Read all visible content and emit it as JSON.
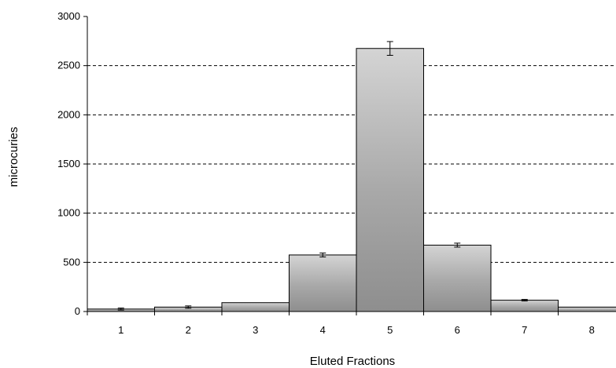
{
  "chart_data": {
    "type": "bar",
    "title": "",
    "xlabel": "Eluted Fractions",
    "ylabel": "microcuries",
    "categories": [
      "1",
      "2",
      "3",
      "4",
      "5",
      "6",
      "7",
      "8"
    ],
    "values": [
      25,
      45,
      90,
      575,
      2675,
      675,
      115,
      45
    ],
    "errors": [
      10,
      12,
      0,
      20,
      70,
      20,
      8,
      0
    ],
    "ylim": [
      0,
      3000
    ],
    "yticks": [
      0,
      500,
      1000,
      1500,
      2000,
      2500,
      3000
    ],
    "grid": "horizontal dashed",
    "legend": "none",
    "colors": {
      "bar_light": "#d4d4d4",
      "bar_dark": "#8e8e8e",
      "bar_stroke": "#000000",
      "grid": "#000000"
    }
  }
}
